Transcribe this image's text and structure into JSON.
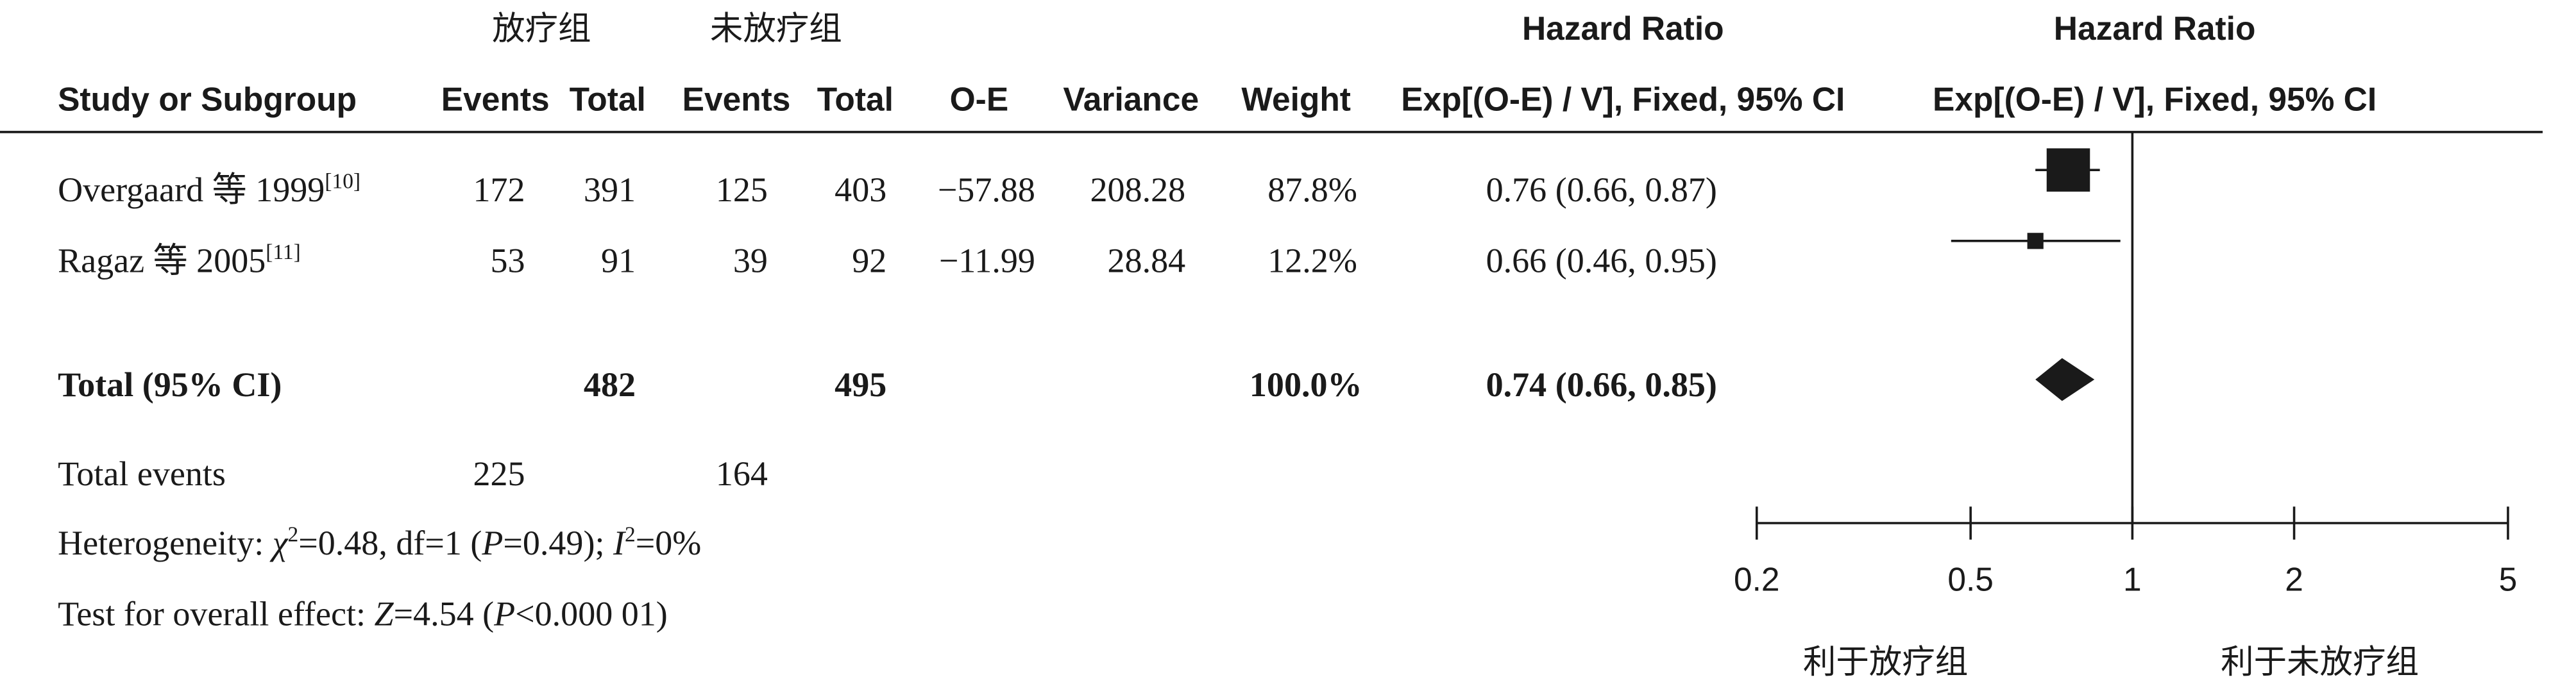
{
  "chart_data": {
    "type": "forest",
    "group_headers": {
      "experimental": "放疗组",
      "control": "未放疗组",
      "hr_table": "Hazard Ratio",
      "hr_plot": "Hazard Ratio"
    },
    "column_headers": [
      "Study or Subgroup",
      "Events",
      "Total",
      "Events",
      "Total",
      "O-E",
      "Variance",
      "Weight",
      "Exp[(O-E) / V], Fixed, 95% CI",
      "Exp[(O-E) / V], Fixed, 95% CI"
    ],
    "studies": [
      {
        "name": "Overgaard 等 1999",
        "ref": "[10]",
        "exp_events": "172",
        "exp_total": "391",
        "ctl_events": "125",
        "ctl_total": "403",
        "oe": "−57.88",
        "variance": "208.28",
        "weight": 87.8,
        "weight_label": "87.8%",
        "hr": 0.76,
        "ci": [
          0.66,
          0.87
        ],
        "hr_label": "0.76 (0.66, 0.87)"
      },
      {
        "name": "Ragaz 等 2005",
        "ref": "[11]",
        "exp_events": "53",
        "exp_total": "91",
        "ctl_events": "39",
        "ctl_total": "92",
        "oe": "−11.99",
        "variance": "28.84",
        "weight": 12.2,
        "weight_label": "12.2%",
        "hr": 0.66,
        "ci": [
          0.46,
          0.95
        ],
        "hr_label": "0.66 (0.46, 0.95)"
      }
    ],
    "total": {
      "name": "Total (95% CI)",
      "exp_total": "482",
      "ctl_total": "495",
      "weight_label": "100.0%",
      "hr": 0.74,
      "ci": [
        0.66,
        0.85
      ],
      "hr_label": "0.74 (0.66, 0.85)"
    },
    "total_events": {
      "label": "Total events",
      "exp": "225",
      "ctl": "164"
    },
    "heterogeneity": [
      {
        "text": "Heterogeneity: "
      },
      {
        "text": "χ",
        "style": "italic"
      },
      {
        "text": "2",
        "style": "sup"
      },
      {
        "text": "=0.48, df=1 ("
      },
      {
        "text": "P",
        "style": "italic"
      },
      {
        "text": "=0.49); "
      },
      {
        "text": "I",
        "style": "italic"
      },
      {
        "text": "2",
        "style": "sup"
      },
      {
        "text": "=0%"
      }
    ],
    "overall_effect": [
      {
        "text": "Test for overall effect: "
      },
      {
        "text": "Z",
        "style": "italic"
      },
      {
        "text": "=4.54 ("
      },
      {
        "text": "P",
        "style": "italic"
      },
      {
        "text": "<0.000 01)"
      }
    ],
    "log_x": true,
    "xlim": [
      0.2,
      5
    ],
    "xticks": [
      0.2,
      0.5,
      1,
      2,
      5
    ],
    "ref_line": 1,
    "favours_left": "利于放疗组",
    "favours_right": "利于未放疗组",
    "color": "#1a1a1a"
  }
}
